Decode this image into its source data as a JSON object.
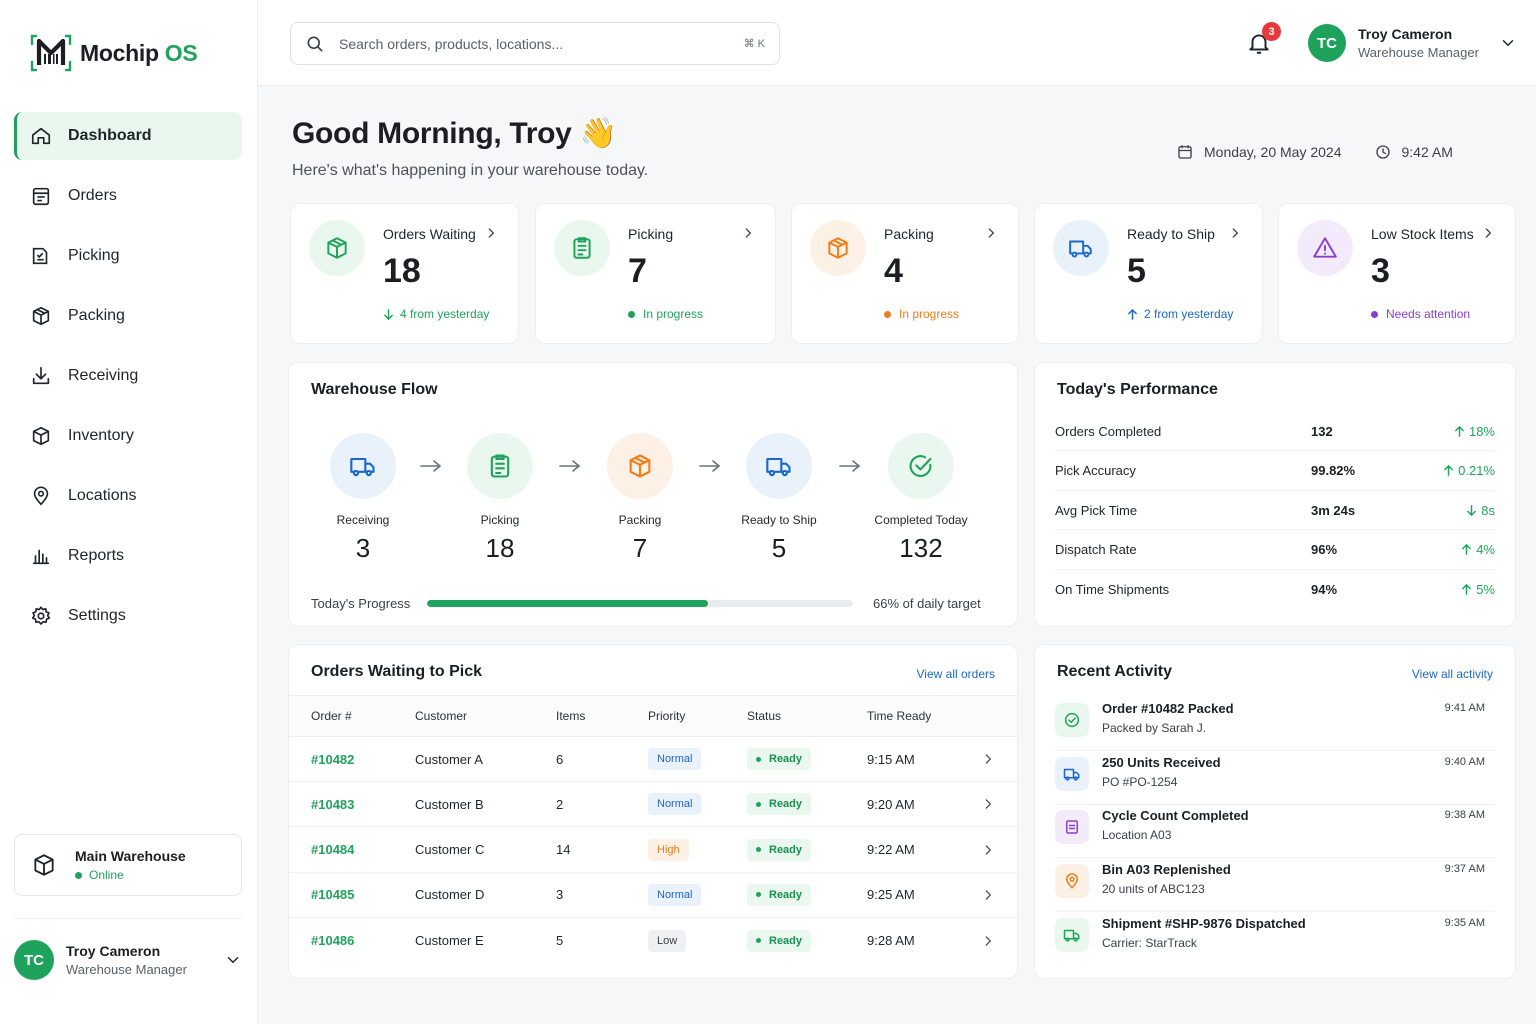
{
  "app": {
    "name": "Mochip",
    "name_suffix": "OS"
  },
  "sidebar": {
    "items": [
      {
        "label": "Dashboard",
        "icon": "home-icon",
        "active": true
      },
      {
        "label": "Orders",
        "icon": "clipboard-icon"
      },
      {
        "label": "Picking",
        "icon": "picking-icon"
      },
      {
        "label": "Packing",
        "icon": "box-icon"
      },
      {
        "label": "Receiving",
        "icon": "download-icon"
      },
      {
        "label": "Inventory",
        "icon": "cube-icon"
      },
      {
        "label": "Locations",
        "icon": "map-pin-icon"
      },
      {
        "label": "Reports",
        "icon": "bar-chart-icon"
      },
      {
        "label": "Settings",
        "icon": "gear-icon"
      }
    ],
    "warehouse": {
      "name": "Main Warehouse",
      "status": "Online"
    },
    "user": {
      "initials": "TC",
      "name": "Troy Cameron",
      "role": "Warehouse Manager"
    }
  },
  "topbar": {
    "search_placeholder": "Search orders, products, locations...",
    "search_shortcut": "⌘ K",
    "notifications_count": "3",
    "user": {
      "initials": "TC",
      "name": "Troy Cameron",
      "role": "Warehouse Manager"
    }
  },
  "header": {
    "greeting": "Good Morning, Troy 👋",
    "subtitle": "Here's what's happening in your warehouse today.",
    "date": "Monday, 20 May 2024",
    "time": "9:42 AM"
  },
  "stats": [
    {
      "label": "Orders Waiting",
      "value": "18",
      "foot": "4 from yesterday",
      "foot_type": "down",
      "color": "#1fa35c",
      "icon": "box-icon"
    },
    {
      "label": "Picking",
      "value": "7",
      "foot": "In progress",
      "foot_type": "dot",
      "color": "#1fa35c",
      "icon": "clipboard-icon"
    },
    {
      "label": "Packing",
      "value": "4",
      "foot": "In progress",
      "foot_type": "dot",
      "color": "#ef7d1a",
      "icon": "box-icon"
    },
    {
      "label": "Ready to Ship",
      "value": "5",
      "foot": "2 from yesterday",
      "foot_type": "up",
      "color": "#1d66c9",
      "icon": "truck-icon"
    },
    {
      "label": "Low Stock Items",
      "value": "3",
      "foot": "Needs attention",
      "foot_type": "dot",
      "color": "#8b3fd1",
      "icon": "warning-icon"
    }
  ],
  "flow": {
    "title": "Warehouse Flow",
    "steps": [
      {
        "label": "Receiving",
        "value": "3",
        "icon": "truck-icon"
      },
      {
        "label": "Picking",
        "value": "18",
        "icon": "clipboard-icon"
      },
      {
        "label": "Packing",
        "value": "7",
        "icon": "box-icon"
      },
      {
        "label": "Ready to Ship",
        "value": "5",
        "icon": "truck-icon"
      },
      {
        "label": "Completed Today",
        "value": "132",
        "icon": "check-circle-icon"
      }
    ],
    "progress_label": "Today's Progress",
    "progress_percent": 66,
    "progress_text": "66% of daily target"
  },
  "performance": {
    "title": "Today's Performance",
    "rows": [
      {
        "name": "Orders Completed",
        "value": "132",
        "delta": "18%",
        "dir": "up"
      },
      {
        "name": "Pick Accuracy",
        "value": "99.82%",
        "delta": "0.21%",
        "dir": "up"
      },
      {
        "name": "Avg Pick Time",
        "value": "3m 24s",
        "delta": "8s",
        "dir": "down"
      },
      {
        "name": "Dispatch Rate",
        "value": "96%",
        "delta": "4%",
        "dir": "up"
      },
      {
        "name": "On Time Shipments",
        "value": "94%",
        "delta": "5%",
        "dir": "up"
      }
    ]
  },
  "orders": {
    "title": "Orders Waiting to Pick",
    "link": "View all orders",
    "columns": [
      "Order #",
      "Customer",
      "Items",
      "Priority",
      "Status",
      "Time Ready"
    ],
    "rows": [
      {
        "order": "#10482",
        "customer": "Customer A",
        "items": "6",
        "priority": "Normal",
        "status": "Ready",
        "time": "9:15 AM"
      },
      {
        "order": "#10483",
        "customer": "Customer B",
        "items": "2",
        "priority": "Normal",
        "status": "Ready",
        "time": "9:20 AM"
      },
      {
        "order": "#10484",
        "customer": "Customer C",
        "items": "14",
        "priority": "High",
        "status": "Ready",
        "time": "9:22 AM"
      },
      {
        "order": "#10485",
        "customer": "Customer D",
        "items": "3",
        "priority": "Normal",
        "status": "Ready",
        "time": "9:25 AM"
      },
      {
        "order": "#10486",
        "customer": "Customer E",
        "items": "5",
        "priority": "Low",
        "status": "Ready",
        "time": "9:28 AM"
      }
    ]
  },
  "activity": {
    "title": "Recent Activity",
    "link": "View all activity",
    "items": [
      {
        "title": "Order #10482 Packed",
        "sub": "Packed by Sarah J.",
        "time": "9:41 AM",
        "icon": "check-circle-icon",
        "color": "#1fa35c",
        "bg": "#e9f7ef"
      },
      {
        "title": "250 Units Received",
        "sub": "PO #PO-1254",
        "time": "9:40 AM",
        "icon": "truck-icon",
        "color": "#1d66c9",
        "bg": "#e9f1fb"
      },
      {
        "title": "Cycle Count Completed",
        "sub": "Location A03",
        "time": "9:38 AM",
        "icon": "list-icon",
        "color": "#8b3fd1",
        "bg": "#f3ebfb"
      },
      {
        "title": "Bin A03 Replenished",
        "sub": "20 units of ABC123",
        "time": "9:37 AM",
        "icon": "map-pin-icon",
        "color": "#ef7d1a",
        "bg": "#fdf0e4"
      },
      {
        "title": "Shipment #SHP-9876 Dispatched",
        "sub": "Carrier: StarTrack",
        "time": "9:35 AM",
        "icon": "truck-icon",
        "color": "#1fa35c",
        "bg": "#e9f7ef"
      }
    ]
  }
}
